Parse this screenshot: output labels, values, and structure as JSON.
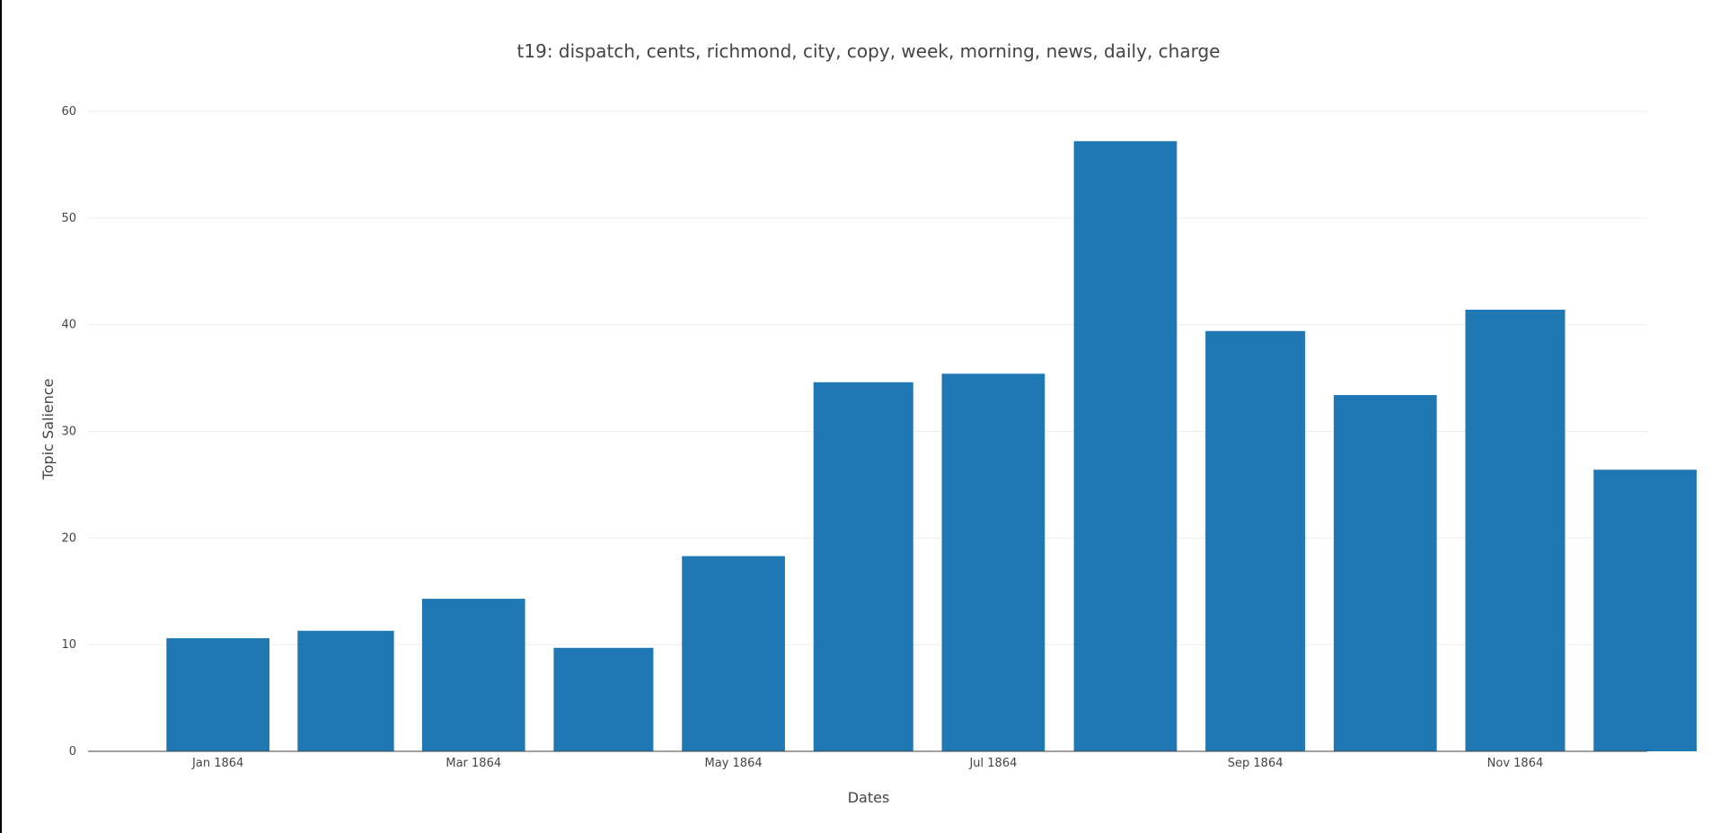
{
  "chart_data": {
    "type": "bar",
    "title": "t19: dispatch, cents, richmond, city, copy, week, morning, news, daily, charge",
    "xlabel": "Dates",
    "ylabel": "Topic Salience",
    "x": [
      "1864-01",
      "1864-02",
      "1864-03",
      "1864-04",
      "1864-05",
      "1864-06",
      "1864-07",
      "1864-08",
      "1864-09",
      "1864-10",
      "1864-11",
      "1864-12"
    ],
    "values": [
      10.6,
      11.3,
      14.3,
      9.7,
      18.3,
      34.6,
      35.4,
      57.2,
      39.4,
      33.4,
      41.4,
      26.4
    ],
    "x_tick_labels": [
      "Jan 1864",
      "Mar 1864",
      "May 1864",
      "Jul 1864",
      "Sep 1864",
      "Nov 1864"
    ],
    "x_tick_dates": [
      "1864-01",
      "1864-03",
      "1864-05",
      "1864-07",
      "1864-09",
      "1864-11"
    ],
    "y_ticks": [
      0,
      10,
      20,
      30,
      40,
      50,
      60
    ],
    "ylim": [
      0,
      60
    ],
    "grid": true,
    "bar_color": "#1f77b4"
  }
}
